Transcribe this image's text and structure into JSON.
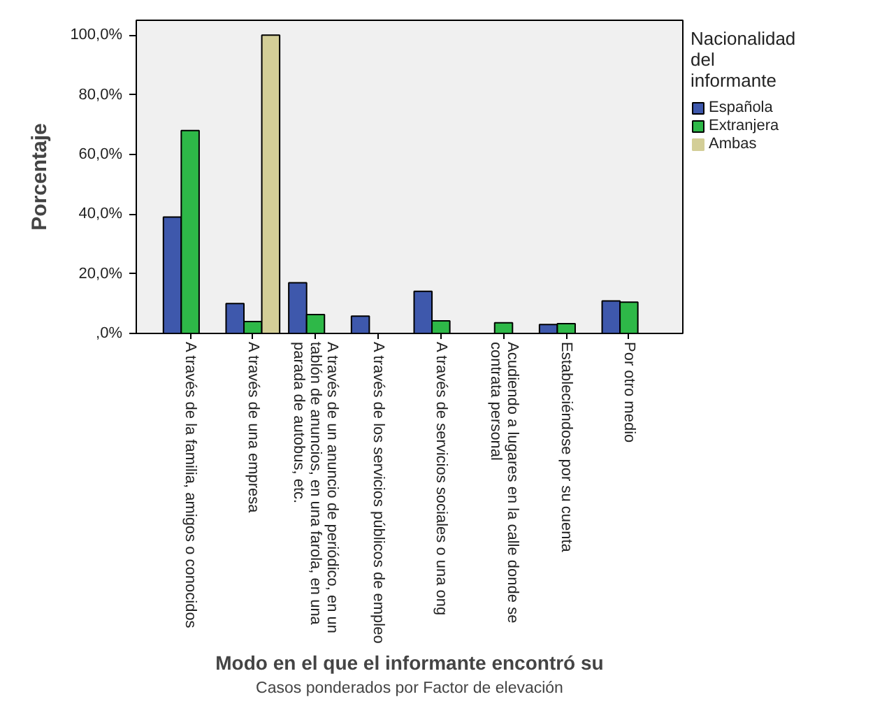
{
  "chart_data": {
    "type": "bar",
    "categories": [
      "A través de la familia, amigos o conocidos",
      "A través de una empresa",
      "A través de un anuncio de periódico, en un tablón de anuncios, en una farola, en una parada de autobus, etc.",
      "A través de los servicios públicos de empleo",
      "A través de servicios sociales o una ong",
      "Acudiendo a lugares en la calle donde se contrata personal",
      "Estableciéndose por su cuenta",
      "Por otro medio"
    ],
    "series": [
      {
        "name": "Española",
        "color": "#3e58ac",
        "values": [
          39,
          10,
          17,
          5.8,
          14.1,
          0,
          3.0,
          10.9
        ]
      },
      {
        "name": "Extranjera",
        "color": "#2eb848",
        "values": [
          68,
          4,
          6.3,
          0,
          4.2,
          3.6,
          3.3,
          10.5
        ]
      },
      {
        "name": "Ambas",
        "color": "#d3ce97",
        "values": [
          0,
          100,
          0,
          0,
          0,
          0,
          0,
          0
        ]
      }
    ],
    "ylabel": "Porcentaje",
    "xlabel": "Modo en el que el informante encontró su",
    "legend_title": "Nacionalidad del informante",
    "legend": "right",
    "annotations": [
      "Casos ponderados por Factor de elevación"
    ],
    "ylim": [
      0,
      105
    ],
    "yticks": [
      {
        "value": 0,
        "label": ",0%"
      },
      {
        "value": 20,
        "label": "20,0%"
      },
      {
        "value": 40,
        "label": "40,0%"
      },
      {
        "value": 60,
        "label": "60,0%"
      },
      {
        "value": 80,
        "label": "80,0%"
      },
      {
        "value": 100,
        "label": "100,0%"
      }
    ]
  }
}
